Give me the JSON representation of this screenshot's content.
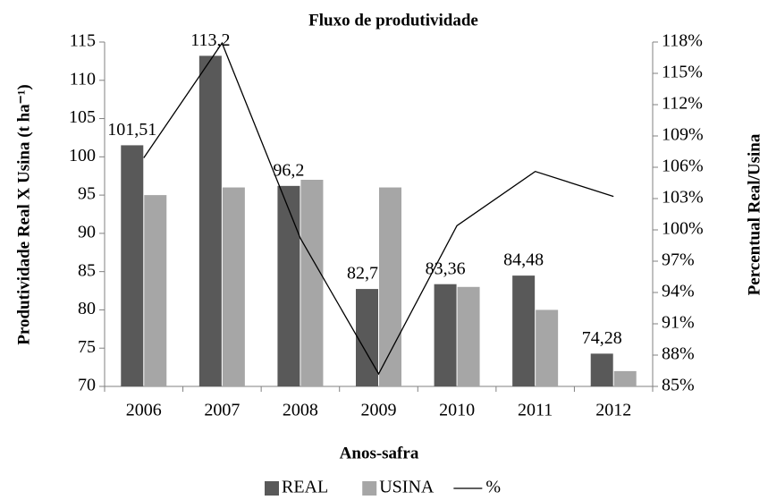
{
  "chart_data": {
    "type": "bar",
    "title": "Fluxo de produtividade",
    "x_label": "Anos-safra",
    "y_label": "Produtividade Real X Usina (t ha⁻¹)",
    "y2_label": "Percentual Real/Usina",
    "categories": [
      "2006",
      "2007",
      "2008",
      "2009",
      "2010",
      "2011",
      "2012"
    ],
    "series": [
      {
        "name": "REAL",
        "type": "bar",
        "color": "#595959",
        "values": [
          101.51,
          113.2,
          96.2,
          82.73,
          83.36,
          84.48,
          74.28
        ],
        "value_labels": [
          "101,51",
          "113,2",
          "96,2",
          "82,73",
          "83,36",
          "84,48",
          "74,28"
        ]
      },
      {
        "name": "USINA",
        "type": "bar",
        "color": "#a6a6a6",
        "values": [
          95,
          96,
          97,
          96,
          83,
          80,
          72
        ]
      },
      {
        "name": "%",
        "type": "line",
        "axis": "y2",
        "color": "#000000",
        "values": [
          106.9,
          117.9,
          99.2,
          86.2,
          100.4,
          105.6,
          103.2
        ]
      }
    ],
    "ylim": [
      70,
      115
    ],
    "yticks": [
      70,
      75,
      80,
      85,
      90,
      95,
      100,
      105,
      110,
      115
    ],
    "y2lim": [
      85,
      118
    ],
    "y2ticks": [
      {
        "value": 85,
        "label": "85%"
      },
      {
        "value": 88,
        "label": "88%"
      },
      {
        "value": 91,
        "label": "91%"
      },
      {
        "value": 94,
        "label": "94%"
      },
      {
        "value": 97,
        "label": "97%"
      },
      {
        "value": 100,
        "label": "100%"
      },
      {
        "value": 103,
        "label": "103%"
      },
      {
        "value": 106,
        "label": "106%"
      },
      {
        "value": 109,
        "label": "109%"
      },
      {
        "value": 112,
        "label": "112%"
      },
      {
        "value": 115,
        "label": "115%"
      },
      {
        "value": 118,
        "label": "118%"
      }
    ],
    "legend": "bottom"
  }
}
